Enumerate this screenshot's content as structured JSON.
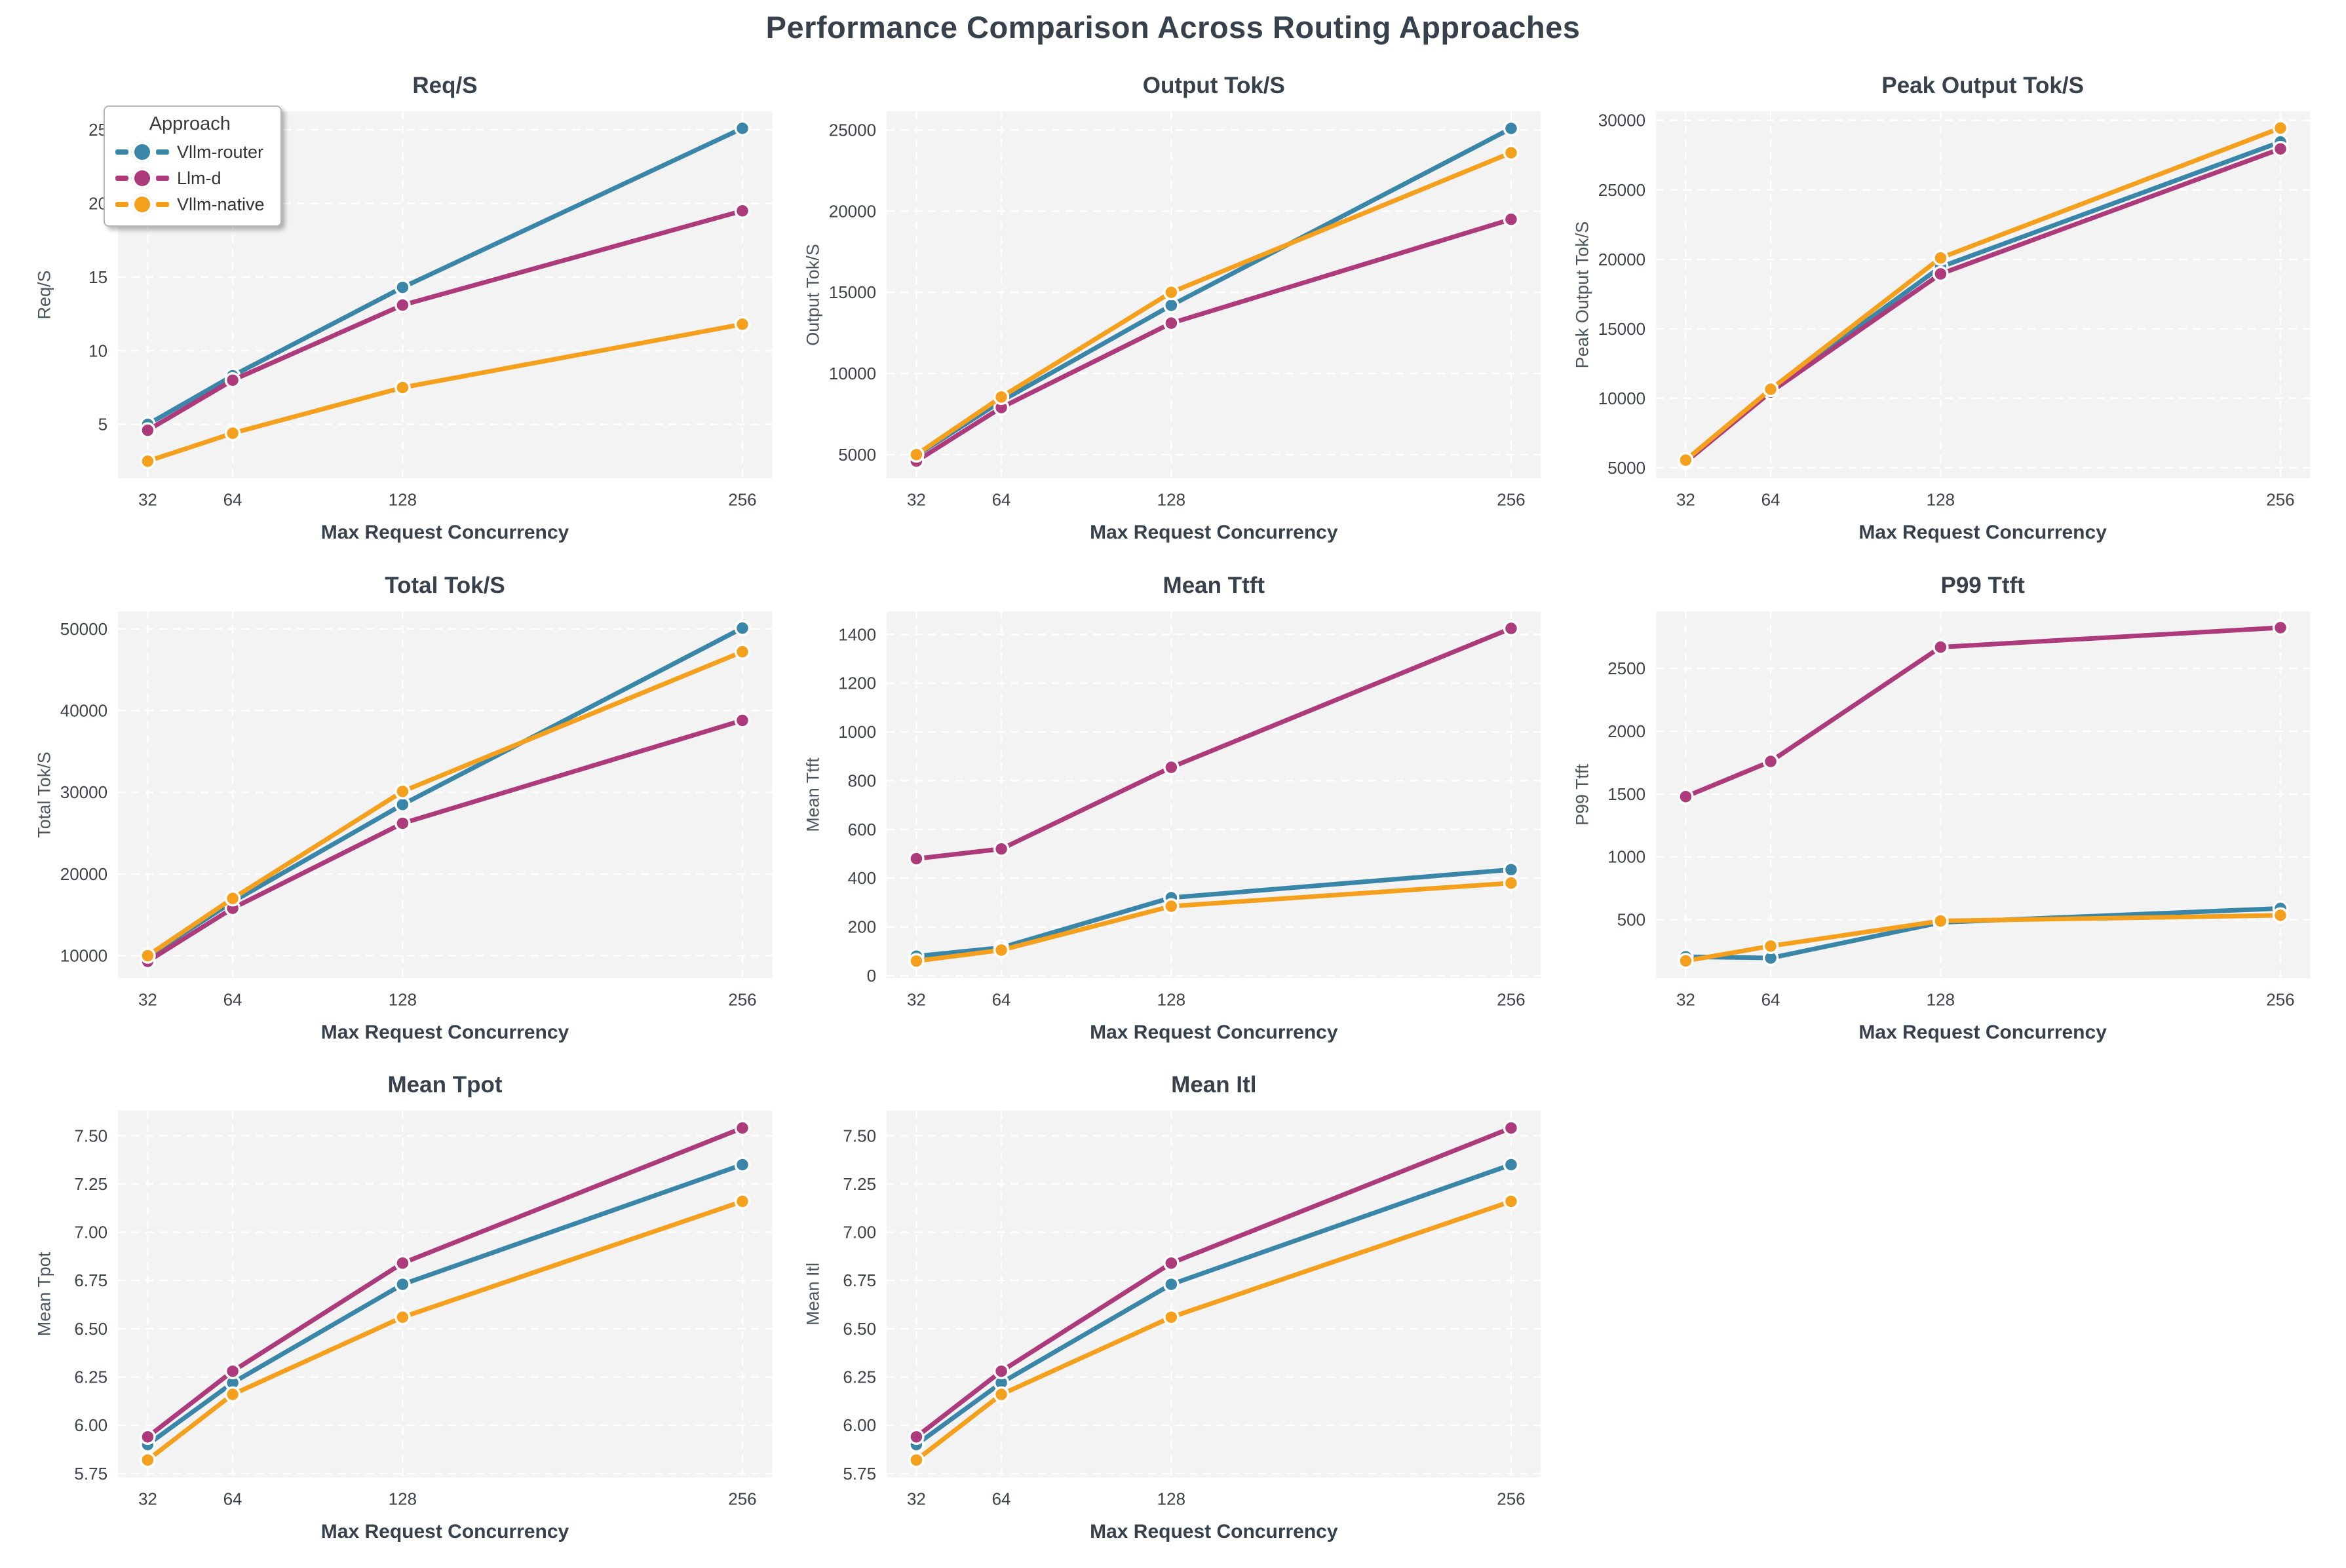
{
  "figure": {
    "title": "Performance Comparison Across Routing Approaches",
    "x_label": "Max Request Concurrency",
    "x_values": [
      32,
      64,
      128,
      256
    ],
    "xlim": [
      20.8,
      267.2
    ],
    "background": "#ffffff",
    "plot_background": "#f3f3f4",
    "grid_color": "#ffffff",
    "text_color": "#37414b",
    "tick_color": "#3e434a"
  },
  "legend": {
    "title": "Approach"
  },
  "approaches": [
    {
      "name": "Vllm-router",
      "color": "#3a86a8"
    },
    {
      "name": "Llm-d",
      "color": "#ad3a7b"
    },
    {
      "name": "Vllm-native",
      "color": "#f4a01d"
    }
  ],
  "chart_data": [
    {
      "type": "line",
      "title": "Req/S",
      "ylabel": "Req/S",
      "xlabel": "Max Request Concurrency",
      "x": [
        32,
        64,
        128,
        256
      ],
      "ylim": [
        1.35,
        26.25
      ],
      "yticks": [
        5,
        10,
        15,
        20,
        25
      ],
      "ytick_decimals": 0,
      "legend": true,
      "series": [
        {
          "name": "Vllm-router",
          "values": [
            5.0,
            8.3,
            14.3,
            25.1
          ]
        },
        {
          "name": "Llm-d",
          "values": [
            4.6,
            8.0,
            13.1,
            19.5
          ]
        },
        {
          "name": "Vllm-native",
          "values": [
            2.5,
            4.4,
            7.5,
            11.8
          ]
        }
      ]
    },
    {
      "type": "line",
      "title": "Output Tok/S",
      "ylabel": "Output Tok/S",
      "xlabel": "Max Request Concurrency",
      "x": [
        32,
        64,
        128,
        256
      ],
      "ylim": [
        3550,
        26150
      ],
      "yticks": [
        5000,
        10000,
        15000,
        20000,
        25000
      ],
      "ytick_decimals": 0,
      "legend": false,
      "series": [
        {
          "name": "Vllm-router",
          "values": [
            4950,
            8300,
            14200,
            25100
          ]
        },
        {
          "name": "Llm-d",
          "values": [
            4600,
            7900,
            13100,
            19500
          ]
        },
        {
          "name": "Vllm-native",
          "values": [
            5000,
            8550,
            15000,
            23600
          ]
        }
      ]
    },
    {
      "type": "line",
      "title": "Peak Output Tok/S",
      "ylabel": "Peak Output Tok/S",
      "xlabel": "Max Request Concurrency",
      "x": [
        32,
        64,
        128,
        256
      ],
      "ylim": [
        4250,
        30650
      ],
      "yticks": [
        5000,
        10000,
        15000,
        20000,
        25000,
        30000
      ],
      "ytick_decimals": 0,
      "legend": false,
      "series": [
        {
          "name": "Vllm-router",
          "values": [
            5480,
            10550,
            19450,
            28450
          ]
        },
        {
          "name": "Llm-d",
          "values": [
            5420,
            10450,
            18950,
            27950
          ]
        },
        {
          "name": "Vllm-native",
          "values": [
            5550,
            10650,
            20100,
            29450
          ]
        }
      ]
    },
    {
      "type": "line",
      "title": "Total Tok/S",
      "ylabel": "Total Tok/S",
      "xlabel": "Max Request Concurrency",
      "x": [
        32,
        64,
        128,
        256
      ],
      "ylim": [
        7250,
        52150
      ],
      "yticks": [
        10000,
        20000,
        30000,
        40000,
        50000
      ],
      "ytick_decimals": 0,
      "legend": false,
      "series": [
        {
          "name": "Vllm-router",
          "values": [
            9900,
            16600,
            28500,
            50100
          ]
        },
        {
          "name": "Llm-d",
          "values": [
            9300,
            15800,
            26200,
            38800
          ]
        },
        {
          "name": "Vllm-native",
          "values": [
            10000,
            17000,
            30100,
            47200
          ]
        }
      ]
    },
    {
      "type": "line",
      "title": "Mean Ttft",
      "ylabel": "Mean Ttft",
      "xlabel": "Max Request Concurrency",
      "x": [
        32,
        64,
        128,
        256
      ],
      "ylim": [
        -10,
        1495
      ],
      "yticks": [
        0,
        200,
        400,
        600,
        800,
        1000,
        1200,
        1400
      ],
      "ytick_decimals": 0,
      "legend": false,
      "series": [
        {
          "name": "Vllm-router",
          "values": [
            80,
            115,
            320,
            435
          ]
        },
        {
          "name": "Llm-d",
          "values": [
            480,
            520,
            855,
            1425
          ]
        },
        {
          "name": "Vllm-native",
          "values": [
            60,
            105,
            285,
            380
          ]
        }
      ]
    },
    {
      "type": "line",
      "title": "P99 Ttft",
      "ylabel": "P99 Ttft",
      "xlabel": "Max Request Concurrency",
      "x": [
        32,
        64,
        128,
        256
      ],
      "ylim": [
        35,
        2955
      ],
      "yticks": [
        500,
        1000,
        1500,
        2000,
        2500
      ],
      "ytick_decimals": 0,
      "legend": false,
      "series": [
        {
          "name": "Vllm-router",
          "values": [
            205,
            195,
            478,
            590
          ]
        },
        {
          "name": "Llm-d",
          "values": [
            1480,
            1760,
            2670,
            2825
          ]
        },
        {
          "name": "Vllm-native",
          "values": [
            172,
            290,
            490,
            535
          ]
        }
      ]
    },
    {
      "type": "line",
      "title": "Mean Tpot",
      "ylabel": "Mean Tpot",
      "xlabel": "Max Request Concurrency",
      "x": [
        32,
        64,
        128,
        256
      ],
      "ylim": [
        5.73,
        7.63
      ],
      "yticks": [
        5.75,
        6.0,
        6.25,
        6.5,
        6.75,
        7.0,
        7.25,
        7.5
      ],
      "ytick_decimals": 2,
      "legend": false,
      "series": [
        {
          "name": "Vllm-router",
          "values": [
            5.9,
            6.22,
            6.73,
            7.35
          ]
        },
        {
          "name": "Llm-d",
          "values": [
            5.94,
            6.28,
            6.84,
            7.54
          ]
        },
        {
          "name": "Vllm-native",
          "values": [
            5.82,
            6.16,
            6.56,
            7.16
          ]
        }
      ]
    },
    {
      "type": "line",
      "title": "Mean Itl",
      "ylabel": "Mean Itl",
      "xlabel": "Max Request Concurrency",
      "x": [
        32,
        64,
        128,
        256
      ],
      "ylim": [
        5.73,
        7.63
      ],
      "yticks": [
        5.75,
        6.0,
        6.25,
        6.5,
        6.75,
        7.0,
        7.25,
        7.5
      ],
      "ytick_decimals": 2,
      "legend": false,
      "series": [
        {
          "name": "Vllm-router",
          "values": [
            5.9,
            6.22,
            6.73,
            7.35
          ]
        },
        {
          "name": "Llm-d",
          "values": [
            5.94,
            6.28,
            6.84,
            7.54
          ]
        },
        {
          "name": "Vllm-native",
          "values": [
            5.82,
            6.16,
            6.56,
            7.16
          ]
        }
      ]
    }
  ]
}
